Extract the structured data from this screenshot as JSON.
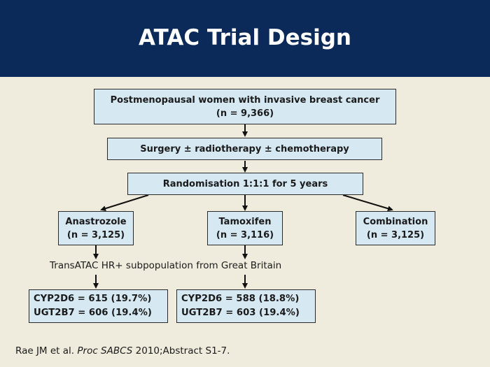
{
  "header": {
    "title": "ATAC Trial Design"
  },
  "flow": {
    "population": {
      "line1": "Postmenopausal women with invasive breast cancer",
      "line2": "(n = 9,366)"
    },
    "treatment": {
      "label": "Surgery ± radiotherapy ± chemotherapy"
    },
    "randomisation": {
      "label": "Randomisation 1:1:1 for 5 years"
    },
    "arms": [
      {
        "name": "Anastrozole",
        "n": "(n = 3,125)"
      },
      {
        "name": "Tamoxifen",
        "n": "(n = 3,116)"
      },
      {
        "name": "Combination",
        "n": "(n = 3,125)"
      }
    ],
    "subpopulation": "TransATAC HR+ subpopulation from Great Britain",
    "results": [
      {
        "line1": "CYP2D6 = 615 (19.7%)",
        "line2": "UGT2B7 = 606 (19.4%)"
      },
      {
        "line1": "CYP2D6 = 588 (18.8%)",
        "line2": "UGT2B7 = 603 (19.4%)"
      }
    ]
  },
  "citation": {
    "authors": "Rae JM et al. ",
    "journal": "Proc SABCS",
    "rest": " 2010;Abstract S1-7."
  },
  "colors": {
    "header_bg": "#0b2a5a",
    "page_bg": "#f0ecdd",
    "box_fill": "#d6e9f3",
    "text": "#1a1a1a"
  }
}
